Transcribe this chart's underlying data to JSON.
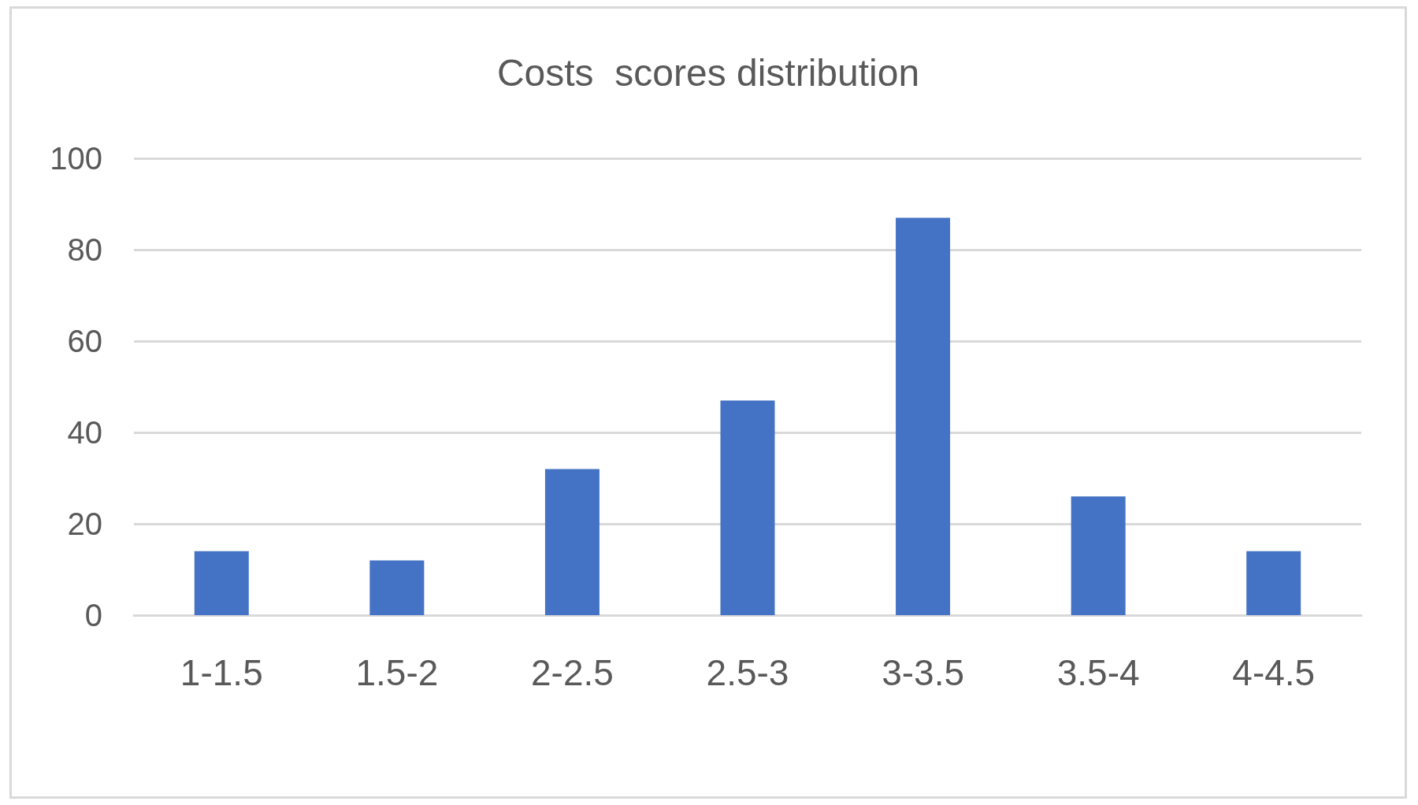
{
  "chart_data": {
    "type": "bar",
    "title": "Costs  scores distribution",
    "categories": [
      "1-1.5",
      "1.5-2",
      "2-2.5",
      "2.5-3",
      "3-3.5",
      "3.5-4",
      "4-4.5"
    ],
    "values": [
      14,
      12,
      32,
      47,
      87,
      26,
      14
    ],
    "color": "#4472c4",
    "ylim": [
      0,
      100
    ],
    "yticks": [
      0,
      20,
      40,
      60,
      80,
      100
    ],
    "grid": "y"
  }
}
